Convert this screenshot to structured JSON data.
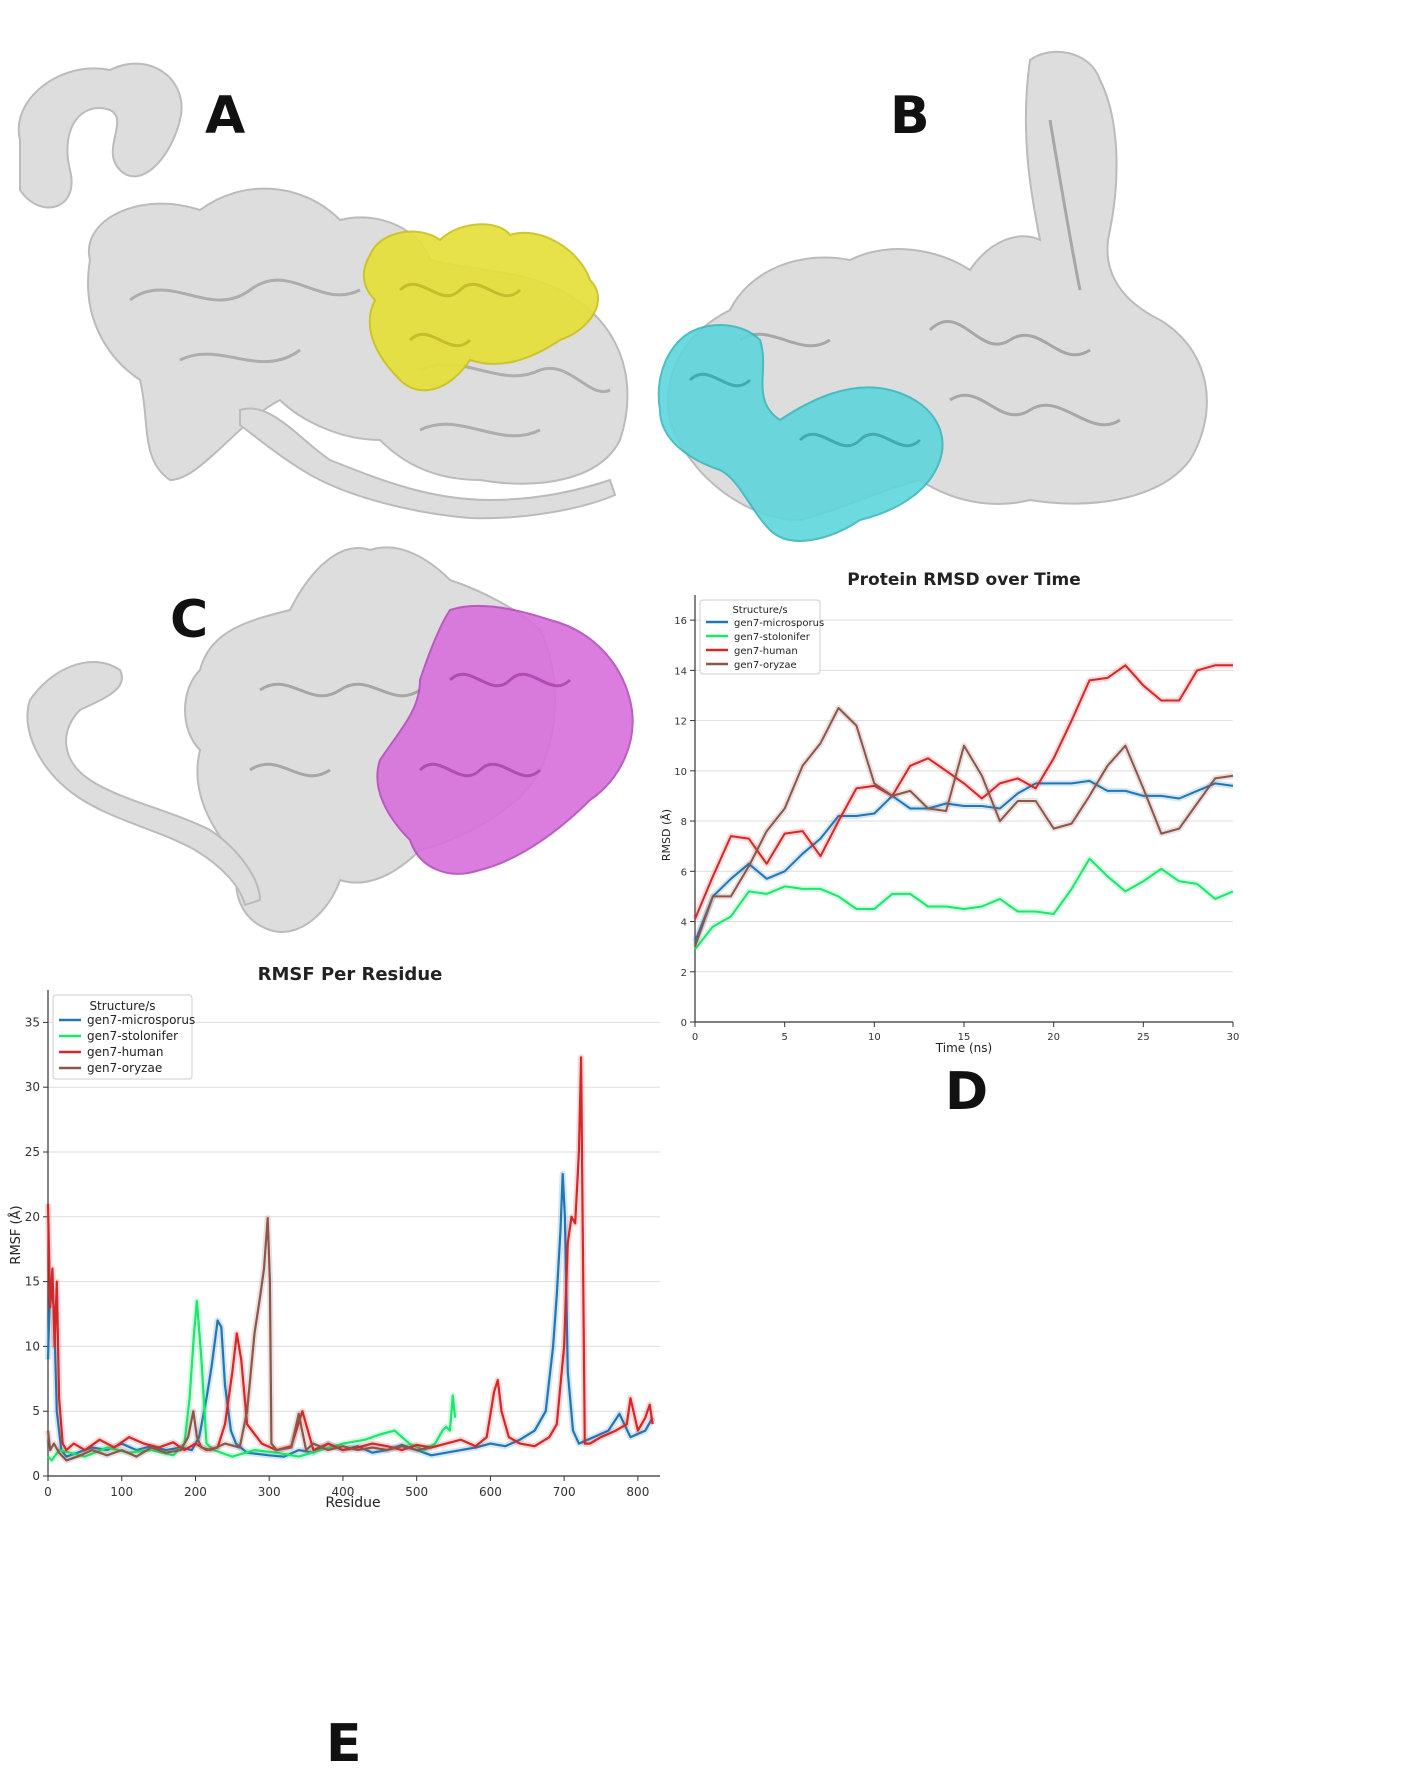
{
  "panels": {
    "a": "A",
    "b": "B",
    "c": "C",
    "d": "D",
    "e": "E"
  },
  "structures": {
    "a_highlight_color": "#e6e03a",
    "b_highlight_color": "#5ed6dc",
    "c_highlight_color": "#d770dc",
    "surface_color": "#d9d9d9"
  },
  "chart_data": [
    {
      "id": "rmsd",
      "type": "line",
      "title": "Protein RMSD over Time",
      "xlabel": "Time (ns)",
      "ylabel": "RMSD (Å)",
      "xlim": [
        0,
        30
      ],
      "ylim": [
        0,
        17
      ],
      "xticks": [
        "0",
        "5",
        "10",
        "15",
        "20",
        "25",
        "30"
      ],
      "yticks": [
        "0",
        "2",
        "4",
        "6",
        "8",
        "10",
        "12",
        "14",
        "16"
      ],
      "grid": "horizontal",
      "legend": {
        "title": "Structure/s",
        "placement": "top-left"
      },
      "series": [
        {
          "name": "gen7-microsporus",
          "color": "#1f77b4",
          "x": [
            0,
            1,
            2,
            3,
            4,
            5,
            6,
            7,
            8,
            9,
            10,
            11,
            12,
            13,
            14,
            15,
            16,
            17,
            18,
            19,
            20,
            21,
            22,
            23,
            24,
            25,
            26,
            27,
            28,
            29,
            30
          ],
          "y": [
            3.2,
            5.0,
            5.7,
            6.3,
            5.7,
            6.0,
            6.7,
            7.3,
            8.2,
            8.2,
            8.3,
            9.0,
            8.5,
            8.5,
            8.7,
            8.6,
            8.6,
            8.5,
            9.1,
            9.5,
            9.5,
            9.5,
            9.6,
            9.2,
            9.2,
            9.0,
            9.0,
            8.9,
            9.2,
            9.5,
            9.4
          ]
        },
        {
          "name": "gen7-stolonifer",
          "color": "#19e86a",
          "x": [
            0,
            1,
            2,
            3,
            4,
            5,
            6,
            7,
            8,
            9,
            10,
            11,
            12,
            13,
            14,
            15,
            16,
            17,
            18,
            19,
            20,
            21,
            22,
            23,
            24,
            25,
            26,
            27,
            28,
            29,
            30
          ],
          "y": [
            2.9,
            3.8,
            4.2,
            5.2,
            5.1,
            5.4,
            5.3,
            5.3,
            5.0,
            4.5,
            4.5,
            5.1,
            5.1,
            4.6,
            4.6,
            4.5,
            4.6,
            4.9,
            4.4,
            4.4,
            4.3,
            5.3,
            6.5,
            5.8,
            5.2,
            5.6,
            6.1,
            5.6,
            5.5,
            4.9,
            5.2
          ]
        },
        {
          "name": "gen7-human",
          "color": "#d62728",
          "x": [
            0,
            1,
            2,
            3,
            4,
            5,
            6,
            7,
            8,
            9,
            10,
            11,
            12,
            13,
            14,
            15,
            16,
            17,
            18,
            19,
            20,
            21,
            22,
            23,
            24,
            25,
            26,
            27,
            28,
            29,
            30
          ],
          "y": [
            4.1,
            5.8,
            7.4,
            7.3,
            6.3,
            7.5,
            7.6,
            6.6,
            8.0,
            9.3,
            9.4,
            9.0,
            10.2,
            10.5,
            10.0,
            9.5,
            8.9,
            9.5,
            9.7,
            9.3,
            10.5,
            12.0,
            13.6,
            13.7,
            14.2,
            13.4,
            12.8,
            12.8,
            14.0,
            14.2,
            14.2
          ]
        },
        {
          "name": "gen7-oryzae",
          "color": "#8c564b",
          "x": [
            0,
            1,
            2,
            3,
            4,
            5,
            6,
            7,
            8,
            9,
            10,
            11,
            12,
            13,
            14,
            15,
            16,
            17,
            18,
            19,
            20,
            21,
            22,
            23,
            24,
            25,
            26,
            27,
            28,
            29,
            30
          ],
          "y": [
            3.0,
            5.0,
            5.0,
            6.2,
            7.6,
            8.5,
            10.2,
            11.1,
            12.5,
            11.8,
            9.5,
            9.0,
            9.2,
            8.5,
            8.4,
            11.0,
            9.8,
            8.0,
            8.8,
            8.8,
            7.7,
            7.9,
            9.0,
            10.2,
            11.0,
            9.3,
            7.5,
            7.7,
            8.7,
            9.7,
            9.8
          ]
        }
      ]
    },
    {
      "id": "rmsf",
      "type": "line",
      "title": "RMSF Per Residue",
      "xlabel": "Residue",
      "ylabel": "RMSF (Å)",
      "xlim": [
        0,
        830
      ],
      "ylim": [
        0,
        37.5
      ],
      "xticks": [
        "0",
        "100",
        "200",
        "300",
        "400",
        "500",
        "600",
        "700",
        "800"
      ],
      "yticks": [
        "0",
        "5",
        "10",
        "15",
        "20",
        "25",
        "30",
        "35"
      ],
      "grid": "horizontal",
      "legend": {
        "title": "Structure/s",
        "placement": "top-left"
      },
      "series": [
        {
          "name": "gen7-microsporus",
          "color": "#1f77b4",
          "x": [
            0,
            3,
            8,
            12,
            18,
            25,
            40,
            60,
            80,
            100,
            120,
            140,
            160,
            180,
            195,
            205,
            215,
            222,
            230,
            235,
            240,
            248,
            255,
            270,
            300,
            320,
            340,
            360,
            380,
            400,
            420,
            440,
            460,
            480,
            500,
            520,
            540,
            560,
            580,
            600,
            620,
            640,
            660,
            675,
            685,
            690,
            695,
            698,
            701,
            705,
            712,
            720,
            740,
            760,
            775,
            790,
            810,
            820
          ],
          "y": [
            9.0,
            15.0,
            13.0,
            5.0,
            2.0,
            1.5,
            1.8,
            2.2,
            2.0,
            2.5,
            2.0,
            2.3,
            2.0,
            2.2,
            2.0,
            3.0,
            6.0,
            8.5,
            12.0,
            11.5,
            7.0,
            3.5,
            2.5,
            1.8,
            1.6,
            1.5,
            2.0,
            1.8,
            2.5,
            2.0,
            2.3,
            1.8,
            2.0,
            2.4,
            2.0,
            1.6,
            1.8,
            2.0,
            2.2,
            2.5,
            2.3,
            2.8,
            3.5,
            5.0,
            10.0,
            14.0,
            19.0,
            23.3,
            20.0,
            8.0,
            3.5,
            2.5,
            3.0,
            3.5,
            4.8,
            3.0,
            3.5,
            4.5
          ]
        },
        {
          "name": "gen7-stolonifer",
          "color": "#19e86a",
          "x": [
            0,
            5,
            15,
            30,
            50,
            80,
            110,
            140,
            170,
            185,
            192,
            198,
            202,
            208,
            215,
            225,
            250,
            280,
            310,
            340,
            370,
            400,
            430,
            450,
            470,
            490,
            510,
            525,
            535,
            540,
            545,
            549,
            552
          ],
          "y": [
            1.5,
            1.2,
            2.0,
            1.8,
            1.5,
            2.2,
            1.8,
            2.0,
            1.6,
            2.5,
            6.0,
            11.0,
            13.5,
            9.0,
            2.5,
            2.0,
            1.5,
            2.0,
            1.8,
            1.5,
            2.0,
            2.5,
            2.8,
            3.2,
            3.5,
            2.5,
            2.0,
            2.5,
            3.5,
            3.8,
            3.5,
            6.2,
            4.5
          ]
        },
        {
          "name": "gen7-human",
          "color": "#d62728",
          "x": [
            0,
            3,
            6,
            9,
            12,
            15,
            20,
            25,
            35,
            50,
            70,
            90,
            110,
            130,
            150,
            170,
            185,
            200,
            215,
            230,
            240,
            250,
            256,
            262,
            270,
            290,
            310,
            330,
            345,
            360,
            380,
            400,
            420,
            440,
            460,
            480,
            500,
            520,
            540,
            560,
            580,
            595,
            605,
            610,
            615,
            625,
            640,
            660,
            680,
            690,
            700,
            705,
            710,
            715,
            720,
            723,
            725,
            728,
            735,
            750,
            770,
            785,
            790,
            800,
            810,
            816,
            820
          ],
          "y": [
            21.0,
            13.0,
            16.0,
            10.0,
            15.0,
            6.0,
            2.5,
            2.0,
            2.5,
            2.0,
            2.8,
            2.2,
            3.0,
            2.5,
            2.2,
            2.6,
            2.0,
            2.5,
            2.0,
            2.2,
            4.0,
            8.0,
            11.0,
            9.0,
            4.0,
            2.5,
            2.0,
            2.3,
            5.0,
            2.0,
            2.5,
            2.0,
            2.2,
            2.5,
            2.3,
            2.0,
            2.4,
            2.2,
            2.5,
            2.8,
            2.3,
            3.0,
            6.5,
            7.4,
            5.0,
            3.0,
            2.5,
            2.3,
            3.0,
            4.0,
            10.0,
            18.0,
            20.0,
            19.5,
            25.0,
            32.3,
            20.0,
            2.5,
            2.5,
            3.0,
            3.5,
            4.0,
            6.0,
            3.5,
            4.5,
            5.5,
            4.0
          ]
        },
        {
          "name": "gen7-oryzae",
          "color": "#8c564b",
          "x": [
            0,
            3,
            8,
            15,
            25,
            40,
            60,
            80,
            100,
            120,
            140,
            160,
            180,
            190,
            197,
            202,
            208,
            220,
            240,
            260,
            270,
            280,
            288,
            293,
            298,
            301,
            303,
            310,
            330,
            340,
            350,
            360,
            380,
            400,
            420,
            440,
            460,
            480,
            500,
            520
          ],
          "y": [
            3.5,
            2.0,
            2.5,
            1.8,
            1.2,
            1.5,
            2.0,
            1.6,
            2.0,
            1.5,
            2.2,
            1.8,
            2.0,
            3.0,
            5.0,
            3.0,
            2.2,
            2.0,
            2.5,
            2.2,
            5.0,
            11.0,
            14.0,
            16.0,
            19.9,
            15.0,
            2.5,
            2.0,
            2.2,
            4.8,
            2.0,
            2.5,
            2.0,
            2.3,
            2.0,
            2.2,
            2.0,
            2.3,
            2.0,
            2.2
          ]
        }
      ]
    }
  ]
}
